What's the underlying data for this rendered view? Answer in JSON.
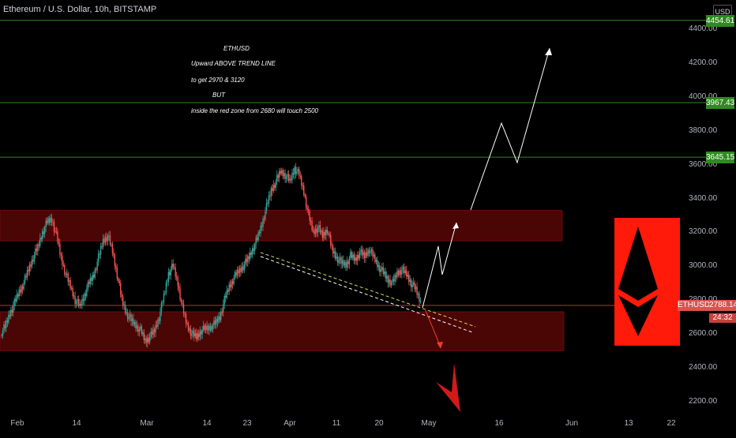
{
  "header": {
    "symbol": "Ethereum / U.S. Dollar, 10h, BITSTAMP",
    "currency": "USD"
  },
  "annotations": [
    "ETHUSD",
    "Upward  ABOVE TREND LINE",
    "to get 2970 & 3120",
    "BUT",
    "inside the red zone from 2680 will touch 2500"
  ],
  "colors": {
    "up": "#26a69a",
    "down": "#ef5350",
    "level_line": "#2e8b1f",
    "zone": "#4a0505",
    "current": "#d9534f",
    "logo_bg": "#ff1a0a"
  },
  "icons": {
    "logo": "ethereum-logo-icon",
    "down_arrow": "big-down-arrow-icon"
  },
  "price_labels": {
    "symbol": "ETHUSD",
    "price": "2788.14",
    "timer": "24:32"
  },
  "chart_data": {
    "type": "candlestick",
    "title": "Ethereum / U.S. Dollar, 10h, BITSTAMP",
    "ylim": [
      2100,
      4500
    ],
    "y_ticks": [
      "4400.00",
      "4200.00",
      "4000.00",
      "3800.00",
      "3600.00",
      "3400.00",
      "3200.00",
      "3000.00",
      "2800.00",
      "2600.00",
      "2400.00",
      "2200.00"
    ],
    "x_ticks": [
      "Feb",
      "14",
      "Mar",
      "14",
      "23",
      "Apr",
      "11",
      "20",
      "May",
      "16",
      "Jun",
      "13",
      "22"
    ],
    "levels": [
      {
        "value": 4454.61,
        "label": "4454.61"
      },
      {
        "value": 3967.43,
        "label": "3967.43"
      },
      {
        "value": 3645.15,
        "label": "3645.15"
      }
    ],
    "zones": [
      {
        "from": 3150,
        "to": 3330
      },
      {
        "from": 2500,
        "to": 2730
      }
    ],
    "current_price": 2788.14,
    "close_series": [
      2600,
      2640,
      2720,
      2780,
      2850,
      2900,
      2980,
      3050,
      3110,
      3200,
      3260,
      3280,
      3180,
      3050,
      2950,
      2880,
      2800,
      2760,
      2830,
      2900,
      2950,
      3050,
      3150,
      3180,
      3090,
      2950,
      2800,
      2720,
      2680,
      2650,
      2620,
      2560,
      2580,
      2620,
      2700,
      2820,
      2960,
      3000,
      2900,
      2750,
      2650,
      2600,
      2580,
      2620,
      2630,
      2640,
      2660,
      2700,
      2800,
      2880,
      2930,
      2970,
      3000,
      3040,
      3100,
      3160,
      3250,
      3350,
      3450,
      3500,
      3560,
      3540,
      3500,
      3580,
      3540,
      3440,
      3300,
      3200,
      3230,
      3180,
      3220,
      3100,
      3050,
      3020,
      3010,
      3060,
      3040,
      3080,
      3060,
      3100,
      3050,
      3000,
      2960,
      2920,
      2900,
      2960,
      2980,
      2950,
      2900,
      2860,
      2790
    ]
  }
}
